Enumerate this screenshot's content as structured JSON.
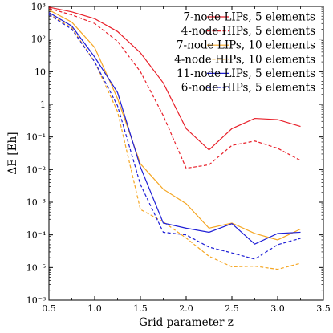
{
  "chart_data": {
    "type": "line",
    "title": "",
    "xlabel": "Grid parameter z",
    "ylabel": "ΔE [Eh]",
    "xlim": [
      0.5,
      3.5
    ],
    "ylim": [
      1e-06,
      1000
    ],
    "yscale": "log",
    "grid": false,
    "legend_position": "top-right",
    "x_ticks": [
      "0.5",
      "1.0",
      "1.5",
      "2.0",
      "2.5",
      "3.0",
      "3.5"
    ],
    "y_ticks": [
      "10⁻⁶",
      "10⁻⁵",
      "10⁻⁴",
      "10⁻³",
      "10⁻²",
      "10⁻¹",
      "1",
      "10",
      "10²",
      "10³"
    ],
    "x": [
      0.5,
      0.75,
      1.0,
      1.25,
      1.5,
      1.75,
      2.0,
      2.25,
      2.5,
      2.75,
      3.0,
      3.25
    ],
    "series": [
      {
        "name": "7-node LIPs, 5 elements",
        "color": "#e8202a",
        "dash": "solid",
        "values": [
          950,
          680,
          420,
          170,
          38,
          4.5,
          0.18,
          0.04,
          0.18,
          0.37,
          0.34,
          0.21
        ]
      },
      {
        "name": "4-node HIPs, 5 elements",
        "color": "#e8202a",
        "dash": "dashed",
        "values": [
          870,
          550,
          300,
          85,
          10,
          0.45,
          0.011,
          0.014,
          0.055,
          0.075,
          0.045,
          0.019
        ]
      },
      {
        "name": "7-node LIPs, 10 elements",
        "color": "#f5a623",
        "dash": "solid",
        "values": [
          780,
          330,
          55,
          1.5,
          0.015,
          0.0025,
          0.0009,
          0.00016,
          0.00023,
          0.00011,
          7e-05,
          0.00015
        ]
      },
      {
        "name": "4-node HIPs, 10 elements",
        "color": "#f5a623",
        "dash": "dashed",
        "values": [
          600,
          220,
          20,
          0.6,
          0.0006,
          0.00025,
          8e-05,
          2.2e-05,
          1.05e-05,
          1.1e-05,
          8.8e-06,
          1.35e-05
        ]
      },
      {
        "name": "11-node LIPs, 5 elements",
        "color": "#1f1fd6",
        "dash": "solid",
        "values": [
          650,
          250,
          28,
          2.3,
          0.012,
          0.00023,
          0.00016,
          0.00012,
          0.00022,
          5.2e-05,
          0.00011,
          0.00012
        ]
      },
      {
        "name": "6-node HIPs, 5 elements",
        "color": "#1f1fd6",
        "dash": "dashed",
        "values": [
          560,
          200,
          20,
          0.9,
          0.0035,
          0.00012,
          0.0001,
          4.2e-05,
          2.8e-05,
          1.8e-05,
          5e-05,
          7.8e-05
        ]
      }
    ]
  }
}
